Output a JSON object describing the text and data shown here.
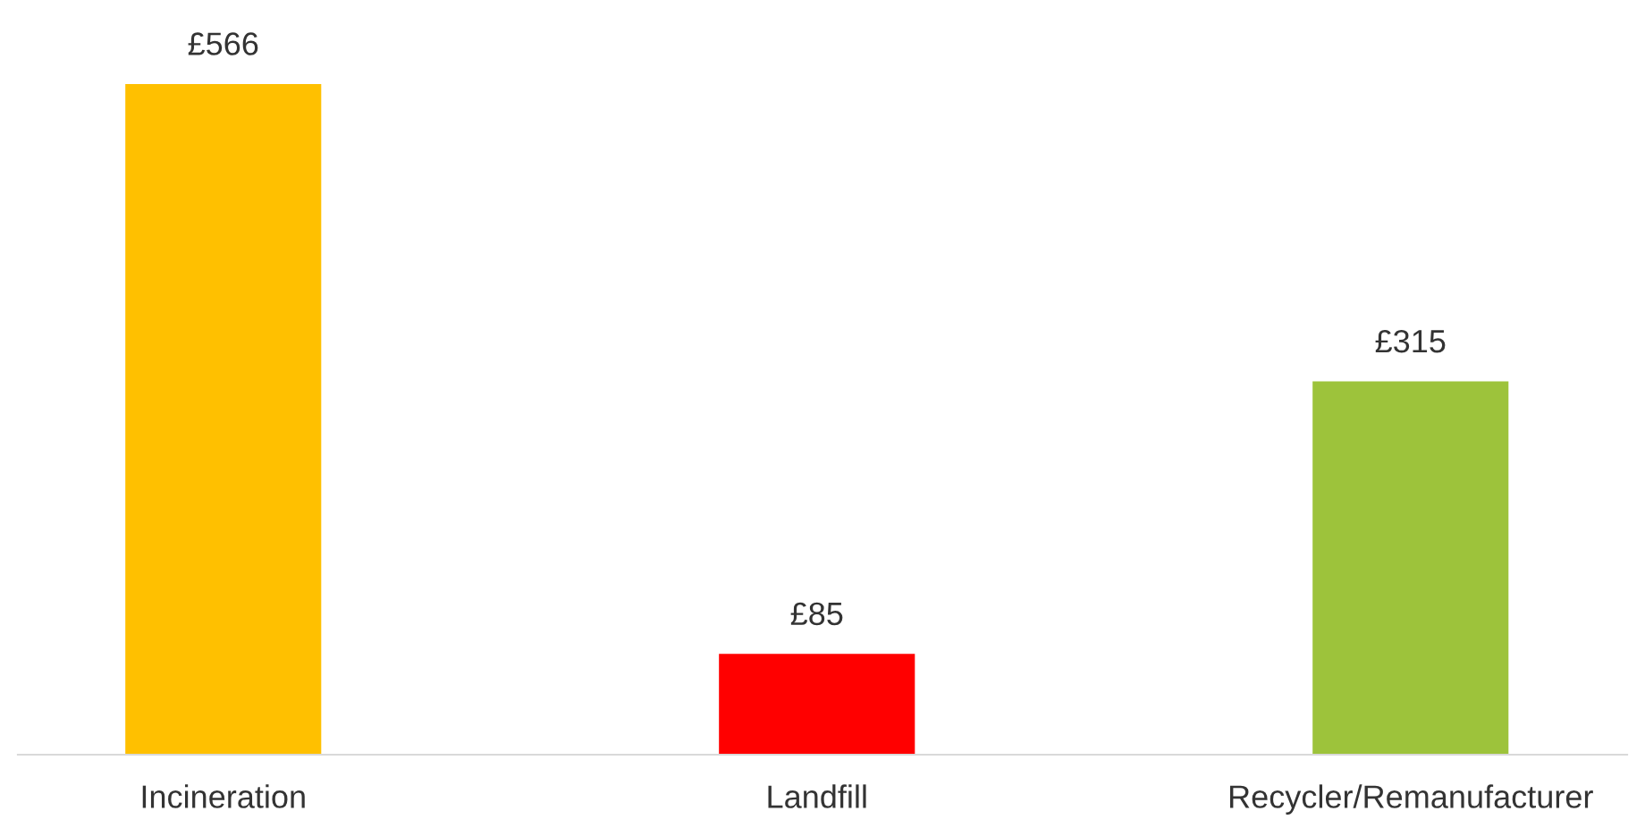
{
  "chart_data": {
    "type": "bar",
    "categories": [
      "Incineration",
      "Landfill",
      "Recycler/Remanufacturer"
    ],
    "values": [
      566,
      85,
      315
    ],
    "colors": [
      "#ffc000",
      "#ff0000",
      "#9dc33b"
    ],
    "value_labels": [
      "£566",
      "£85",
      "£315"
    ]
  }
}
